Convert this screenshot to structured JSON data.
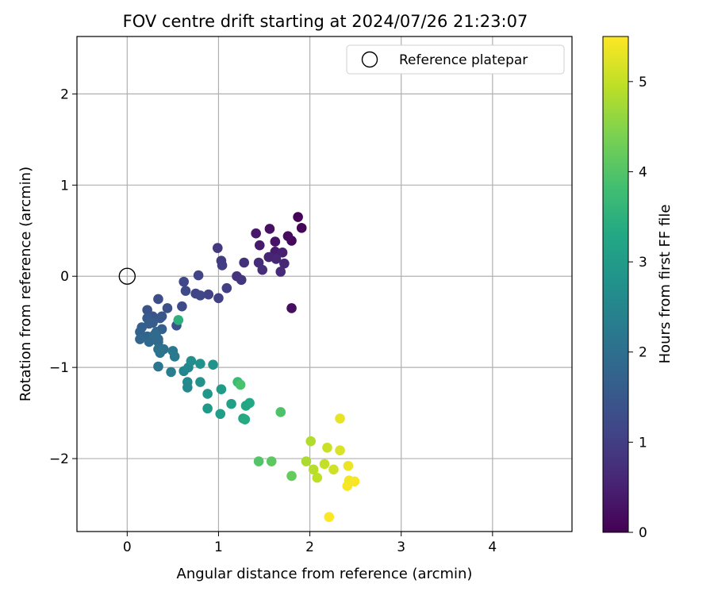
{
  "chart_data": {
    "type": "scatter",
    "title": "FOV centre drift starting at 2024/07/26 21:23:07",
    "xlabel": "Angular distance from reference (arcmin)",
    "ylabel": "Rotation from reference (arcmin)",
    "xlim": [
      -0.55,
      4.87
    ],
    "ylim": [
      -2.8,
      2.63
    ],
    "xticks": [
      0,
      1,
      2,
      3,
      4
    ],
    "yticks": [
      -2,
      -1,
      0,
      1,
      2
    ],
    "grid": true,
    "legend": {
      "placement": "top-right",
      "entries": [
        "Reference platepar"
      ]
    },
    "colorbar": {
      "label": "Hours from first FF file",
      "min": 0,
      "max": 5.5,
      "ticks": [
        0,
        1,
        2,
        3,
        4,
        5
      ],
      "colormap": "viridis"
    },
    "reference_point": {
      "x": 0,
      "y": 0,
      "label": "Reference platepar"
    },
    "points": [
      {
        "x": 1.87,
        "y": 0.65,
        "c": 0.03
      },
      {
        "x": 1.91,
        "y": 0.53,
        "c": 0.08
      },
      {
        "x": 1.8,
        "y": 0.39,
        "c": 0.12
      },
      {
        "x": 1.76,
        "y": 0.44,
        "c": 0.18
      },
      {
        "x": 1.56,
        "y": 0.52,
        "c": 0.25
      },
      {
        "x": 1.62,
        "y": 0.38,
        "c": 0.3
      },
      {
        "x": 1.41,
        "y": 0.47,
        "c": 0.35
      },
      {
        "x": 1.45,
        "y": 0.34,
        "c": 0.4
      },
      {
        "x": 1.62,
        "y": 0.27,
        "c": 0.45
      },
      {
        "x": 1.7,
        "y": 0.26,
        "c": 0.5
      },
      {
        "x": 1.55,
        "y": 0.21,
        "c": 0.55
      },
      {
        "x": 1.63,
        "y": 0.19,
        "c": 0.58
      },
      {
        "x": 1.72,
        "y": 0.14,
        "c": 0.62
      },
      {
        "x": 1.68,
        "y": 0.05,
        "c": 0.66
      },
      {
        "x": 1.44,
        "y": 0.15,
        "c": 0.7
      },
      {
        "x": 1.48,
        "y": 0.07,
        "c": 0.72
      },
      {
        "x": 1.8,
        "y": -0.35,
        "c": 0.2
      },
      {
        "x": 1.28,
        "y": 0.15,
        "c": 0.75
      },
      {
        "x": 1.2,
        "y": 0.0,
        "c": 0.8
      },
      {
        "x": 1.25,
        "y": -0.04,
        "c": 0.85
      },
      {
        "x": 0.99,
        "y": 0.31,
        "c": 0.9
      },
      {
        "x": 1.03,
        "y": 0.17,
        "c": 0.95
      },
      {
        "x": 1.04,
        "y": 0.12,
        "c": 1.0
      },
      {
        "x": 1.09,
        "y": -0.13,
        "c": 1.02
      },
      {
        "x": 1.0,
        "y": -0.24,
        "c": 1.05
      },
      {
        "x": 0.89,
        "y": -0.2,
        "c": 1.08
      },
      {
        "x": 0.78,
        "y": 0.01,
        "c": 1.1
      },
      {
        "x": 0.75,
        "y": -0.19,
        "c": 1.12
      },
      {
        "x": 0.8,
        "y": -0.21,
        "c": 1.15
      },
      {
        "x": 0.62,
        "y": -0.06,
        "c": 1.18
      },
      {
        "x": 0.64,
        "y": -0.16,
        "c": 1.2
      },
      {
        "x": 0.6,
        "y": -0.33,
        "c": 1.25
      },
      {
        "x": 0.34,
        "y": -0.25,
        "c": 1.3
      },
      {
        "x": 0.44,
        "y": -0.35,
        "c": 1.35
      },
      {
        "x": 0.54,
        "y": -0.54,
        "c": 1.4
      },
      {
        "x": 0.22,
        "y": -0.37,
        "c": 1.42
      },
      {
        "x": 0.28,
        "y": -0.44,
        "c": 1.45
      },
      {
        "x": 0.38,
        "y": -0.44,
        "c": 1.48
      },
      {
        "x": 0.36,
        "y": -0.46,
        "c": 1.5
      },
      {
        "x": 0.22,
        "y": -0.46,
        "c": 1.55
      },
      {
        "x": 0.28,
        "y": -0.51,
        "c": 1.58
      },
      {
        "x": 0.24,
        "y": -0.52,
        "c": 1.6
      },
      {
        "x": 0.16,
        "y": -0.56,
        "c": 1.65
      },
      {
        "x": 0.38,
        "y": -0.58,
        "c": 1.68
      },
      {
        "x": 0.14,
        "y": -0.61,
        "c": 1.72
      },
      {
        "x": 0.32,
        "y": -0.61,
        "c": 1.75
      },
      {
        "x": 0.22,
        "y": -0.66,
        "c": 1.78
      },
      {
        "x": 0.14,
        "y": -0.69,
        "c": 1.8
      },
      {
        "x": 0.28,
        "y": -0.69,
        "c": 1.82
      },
      {
        "x": 0.34,
        "y": -0.69,
        "c": 1.85
      },
      {
        "x": 0.24,
        "y": -0.72,
        "c": 1.88
      },
      {
        "x": 0.34,
        "y": -0.72,
        "c": 1.9
      },
      {
        "x": 0.3,
        "y": -0.64,
        "c": 1.92
      },
      {
        "x": 0.34,
        "y": -0.8,
        "c": 2.0
      },
      {
        "x": 0.4,
        "y": -0.8,
        "c": 2.05
      },
      {
        "x": 0.36,
        "y": -0.84,
        "c": 2.1
      },
      {
        "x": 0.5,
        "y": -0.82,
        "c": 2.2
      },
      {
        "x": 0.52,
        "y": -0.88,
        "c": 2.25
      },
      {
        "x": 0.34,
        "y": -0.99,
        "c": 2.15
      },
      {
        "x": 0.48,
        "y": -1.05,
        "c": 2.3
      },
      {
        "x": 0.62,
        "y": -1.04,
        "c": 2.5
      },
      {
        "x": 0.67,
        "y": -1.0,
        "c": 2.55
      },
      {
        "x": 0.7,
        "y": -0.93,
        "c": 2.7
      },
      {
        "x": 0.8,
        "y": -0.96,
        "c": 2.75
      },
      {
        "x": 0.94,
        "y": -0.97,
        "c": 2.85
      },
      {
        "x": 0.66,
        "y": -1.16,
        "c": 2.6
      },
      {
        "x": 0.66,
        "y": -1.22,
        "c": 2.55
      },
      {
        "x": 0.8,
        "y": -1.16,
        "c": 2.8
      },
      {
        "x": 0.88,
        "y": -1.29,
        "c": 2.9
      },
      {
        "x": 0.88,
        "y": -1.45,
        "c": 2.95
      },
      {
        "x": 1.03,
        "y": -1.24,
        "c": 3.0
      },
      {
        "x": 1.02,
        "y": -1.51,
        "c": 3.05
      },
      {
        "x": 1.14,
        "y": -1.4,
        "c": 3.1
      },
      {
        "x": 1.27,
        "y": -1.56,
        "c": 3.2
      },
      {
        "x": 1.3,
        "y": -1.42,
        "c": 3.25
      },
      {
        "x": 1.34,
        "y": -1.39,
        "c": 3.3
      },
      {
        "x": 1.29,
        "y": -1.57,
        "c": 3.35
      },
      {
        "x": 1.21,
        "y": -1.16,
        "c": 3.7
      },
      {
        "x": 1.24,
        "y": -1.19,
        "c": 3.9
      },
      {
        "x": 1.68,
        "y": -1.49,
        "c": 3.95
      },
      {
        "x": 0.56,
        "y": -0.48,
        "c": 3.5
      },
      {
        "x": 1.44,
        "y": -2.03,
        "c": 4.0
      },
      {
        "x": 1.58,
        "y": -2.03,
        "c": 4.1
      },
      {
        "x": 1.8,
        "y": -2.19,
        "c": 4.2
      },
      {
        "x": 2.01,
        "y": -1.81,
        "c": 4.85
      },
      {
        "x": 1.96,
        "y": -2.03,
        "c": 4.8
      },
      {
        "x": 2.04,
        "y": -2.12,
        "c": 4.9
      },
      {
        "x": 2.08,
        "y": -2.21,
        "c": 4.95
      },
      {
        "x": 2.16,
        "y": -2.06,
        "c": 5.0
      },
      {
        "x": 2.19,
        "y": -1.88,
        "c": 5.05
      },
      {
        "x": 2.26,
        "y": -2.12,
        "c": 5.1
      },
      {
        "x": 2.33,
        "y": -1.91,
        "c": 5.2
      },
      {
        "x": 2.33,
        "y": -1.56,
        "c": 5.3
      },
      {
        "x": 2.42,
        "y": -2.08,
        "c": 5.35
      },
      {
        "x": 2.43,
        "y": -2.24,
        "c": 5.4
      },
      {
        "x": 2.49,
        "y": -2.25,
        "c": 5.45
      },
      {
        "x": 2.41,
        "y": -2.3,
        "c": 5.45
      },
      {
        "x": 2.21,
        "y": -2.64,
        "c": 5.5
      }
    ]
  }
}
